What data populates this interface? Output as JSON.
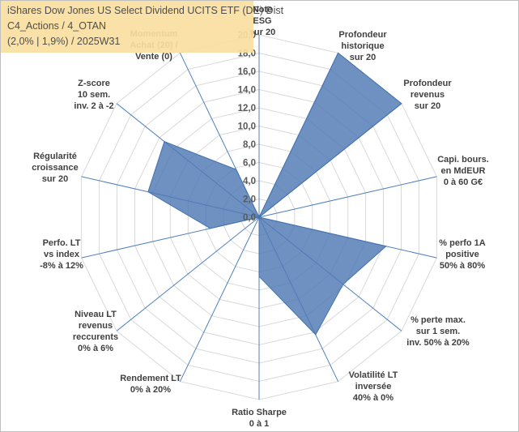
{
  "title": {
    "line1": "iShares Dow Jones US Select Dividend UCITS ETF (DE) Dist",
    "line2": "C4_Actions / 4_OTAN",
    "line3": "(2,0% | 1,9%) / 2025W31"
  },
  "chart_data": {
    "type": "radar",
    "rlim": [
      0,
      20
    ],
    "ticks": [
      "0,0",
      "2,0",
      "4,0",
      "6,0",
      "8,0",
      "10,0",
      "12,0",
      "14,0",
      "16,0",
      "18,0",
      "20,0"
    ],
    "grid": true,
    "axes": [
      "Note ESG sur 20",
      "Profondeur historique sur 20",
      "Profondeur revenus sur 20",
      "Capi. bours. en MdEUR 0 à 60 G€",
      "% perfo 1A positive 50% à 80%",
      "% perte max. sur 1 sem. inv. 50% à 20%",
      "Volatilité LT inversée 40% à 0%",
      "Ratio Sharpe 0 à 1",
      "Rendement LT 0% à 20%",
      "Niveau LT revenus reccurents 0% à 6%",
      "Perfo. LT vs index -8% à 12%",
      "Régularité croissance sur 20",
      "Z-score 10 sem. inv. 2 à -2",
      "Momentum Achat (20) / Vente (0)"
    ],
    "series": [
      {
        "values": [
          0,
          20,
          20,
          0,
          14.3,
          11.8,
          14.3,
          6.5,
          0,
          0,
          5.5,
          12.5,
          13.3,
          5.8
        ]
      }
    ],
    "colors": {
      "fill": "#4f79b3",
      "fill_opacity": "0.82",
      "stroke": "#4272ae",
      "grid": "#d9d9d9",
      "axis": "#4f81bd"
    }
  }
}
